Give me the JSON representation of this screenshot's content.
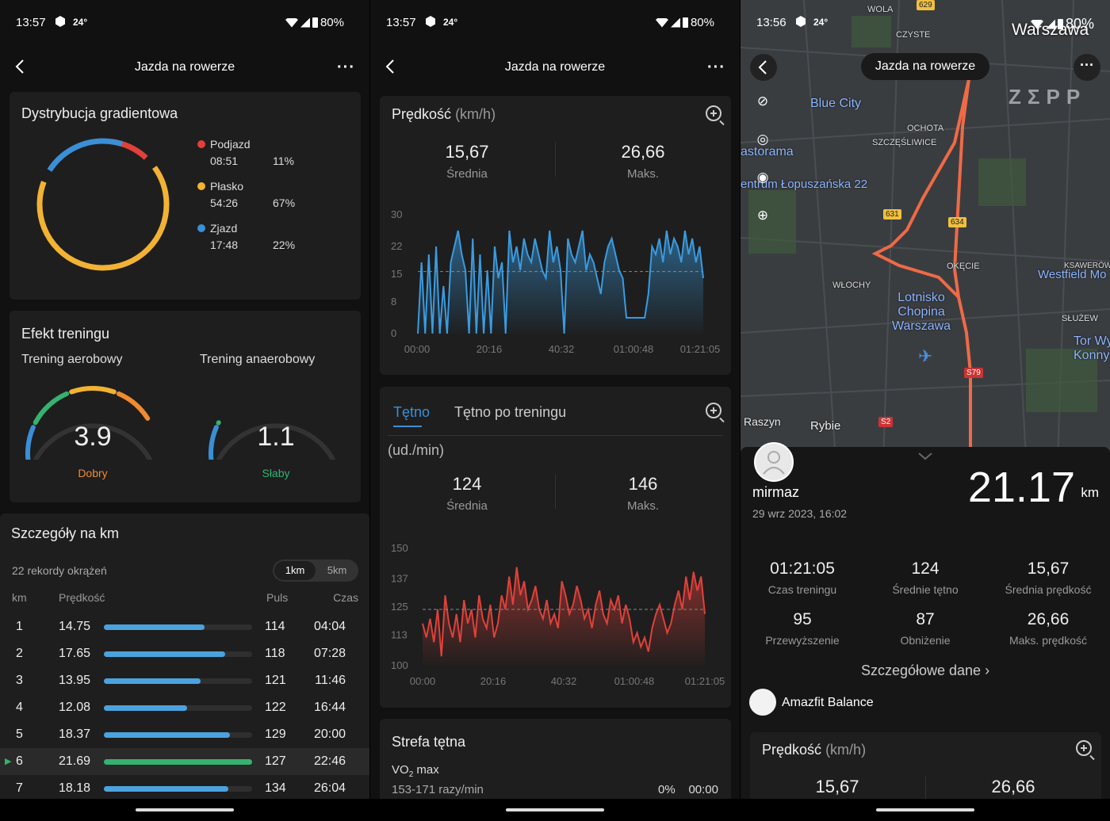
{
  "status_left": {
    "time": "13:57",
    "temp": "24°",
    "battery": "80%"
  },
  "status_right": {
    "time": "13:56",
    "temp": "24°",
    "battery": "80%"
  },
  "header": {
    "title": "Jazda na rowerze",
    "more": "···"
  },
  "gradient": {
    "title": "Dystrybucja gradientowa",
    "items": [
      {
        "label": "Podjazd",
        "time": "08:51",
        "pct": "11%",
        "color": "#e0413a",
        "frac": 0.11
      },
      {
        "label": "Płasko",
        "time": "54:26",
        "pct": "67%",
        "color": "#f2b233",
        "frac": 0.67
      },
      {
        "label": "Zjazd",
        "time": "17:48",
        "pct": "22%",
        "color": "#3a8fd6",
        "frac": 0.22
      }
    ]
  },
  "training": {
    "title": "Efekt treningu",
    "aerobic": {
      "label": "Trening aerobowy",
      "value": "3.9",
      "rating": "Dobry",
      "rating_color": "#f28a2f",
      "level": 0.78
    },
    "anaerobic": {
      "label": "Trening anaerobowy",
      "value": "1.1",
      "rating": "Słaby",
      "rating_color": "#35b26f",
      "level": 0.22
    }
  },
  "km": {
    "title": "Szczegóły na km",
    "records": "22 rekordy okrążeń",
    "seg": [
      "1km",
      "5km"
    ],
    "headers": {
      "km": "km",
      "speed": "Prędkość",
      "pulse": "Puls",
      "time": "Czas"
    },
    "rows": [
      {
        "km": "1",
        "speed": "14.75",
        "pulse": "114",
        "time": "04:04",
        "frac": 0.68
      },
      {
        "km": "2",
        "speed": "17.65",
        "pulse": "118",
        "time": "07:28",
        "frac": 0.82
      },
      {
        "km": "3",
        "speed": "13.95",
        "pulse": "121",
        "time": "11:46",
        "frac": 0.65
      },
      {
        "km": "4",
        "speed": "12.08",
        "pulse": "122",
        "time": "16:44",
        "frac": 0.56
      },
      {
        "km": "5",
        "speed": "18.37",
        "pulse": "129",
        "time": "20:00",
        "frac": 0.85
      },
      {
        "km": "6",
        "speed": "21.69",
        "pulse": "127",
        "time": "22:46",
        "frac": 1.0,
        "highlight": true
      },
      {
        "km": "7",
        "speed": "18.18",
        "pulse": "134",
        "time": "26:04",
        "frac": 0.84
      }
    ]
  },
  "speed_card": {
    "title": "Prędkość",
    "unit": "(km/h)",
    "avg": "15,67",
    "avg_label": "Średnia",
    "max": "26,66",
    "max_label": "Maks."
  },
  "hr_card": {
    "tab1": "Tętno",
    "tab2": "Tętno po treningu",
    "unit": "(ud./min)",
    "avg": "124",
    "avg_label": "Średnia",
    "max": "146",
    "max_label": "Maks."
  },
  "zone": {
    "title": "Strefa tętna",
    "vo2": "VO",
    "vo2_sub": "2",
    "vo2_rest": " max",
    "range": "153-171 razy/min",
    "pct": "0%",
    "time": "00:00"
  },
  "chart_data": [
    {
      "type": "area",
      "title": "Prędkość (km/h)",
      "x_ticks": [
        "00:00",
        "20:16",
        "40:32",
        "01:00:48",
        "01:21:05"
      ],
      "y_ticks": [
        30,
        22,
        15,
        8,
        0
      ],
      "ylim": [
        0,
        30
      ],
      "avg_line": 15.67,
      "values": [
        0,
        18,
        0,
        20,
        0,
        22,
        0,
        12,
        0,
        18,
        22,
        26,
        20,
        16,
        0,
        24,
        0,
        20,
        0,
        16,
        0,
        22,
        14,
        18,
        0,
        26,
        18,
        22,
        16,
        24,
        20,
        18,
        24,
        20,
        16,
        14,
        26,
        18,
        22,
        16,
        0,
        24,
        20,
        18,
        22,
        26,
        16,
        20,
        18,
        14,
        10,
        18,
        22,
        24,
        20,
        16,
        14,
        4,
        4,
        4,
        4,
        4,
        4,
        10,
        22,
        20,
        24,
        18,
        26,
        20,
        24,
        22,
        18,
        26,
        20,
        24,
        18,
        22,
        14
      ]
    },
    {
      "type": "area",
      "title": "Tętno (ud./min)",
      "x_ticks": [
        "00:00",
        "20:16",
        "40:32",
        "01:00:48",
        "01:21:05"
      ],
      "y_ticks": [
        150,
        137,
        125,
        113,
        100
      ],
      "ylim": [
        100,
        150
      ],
      "avg_line": 124,
      "values": [
        118,
        112,
        120,
        110,
        124,
        104,
        130,
        118,
        112,
        122,
        110,
        128,
        118,
        124,
        112,
        130,
        120,
        116,
        126,
        112,
        118,
        130,
        124,
        138,
        126,
        142,
        130,
        136,
        124,
        128,
        134,
        124,
        120,
        128,
        118,
        122,
        116,
        136,
        130,
        122,
        126,
        134,
        128,
        120,
        124,
        116,
        126,
        132,
        122,
        118,
        128,
        124,
        130,
        118,
        126,
        120,
        110,
        114,
        108,
        112,
        106,
        116,
        122,
        126,
        120,
        114,
        118,
        126,
        132,
        124,
        138,
        128,
        140,
        132,
        138,
        122
      ]
    }
  ],
  "map": {
    "city": "Warszawa",
    "brand": "ZΣPP",
    "places": [
      "WOLA",
      "CZYSTE",
      "Blue City",
      "OCHOTA",
      "SZCZĘŚLIWICE",
      "astorama",
      "entrum Łopuszańska 22",
      "WŁOCHY",
      "OKĘCIE",
      "Lotnisko Chopina Warszawa",
      "Westfield Mo",
      "KSAWERÓW",
      "SŁUŻEW",
      "Tor Wy Konny",
      "Raszyn",
      "Rybie"
    ],
    "roads": [
      "629",
      "631",
      "634",
      "S79",
      "S2"
    ]
  },
  "summary": {
    "user": "mirmaz",
    "date": "29 wrz 2023, 16:02",
    "distance": "21.17",
    "dist_unit": "km",
    "stats": [
      {
        "v": "01:21:05",
        "l": "Czas treningu"
      },
      {
        "v": "124",
        "l": "Średnie tętno"
      },
      {
        "v": "15,67",
        "l": "Średnia prędkość"
      },
      {
        "v": "95",
        "l": "Przewyższenie"
      },
      {
        "v": "87",
        "l": "Obniżenie"
      },
      {
        "v": "26,66",
        "l": "Maks. prędkość"
      }
    ],
    "details": "Szczegółowe dane",
    "device": "Amazfit Balance"
  },
  "speed_card3": {
    "title": "Prędkość",
    "unit": "(km/h)",
    "avg": "15,67",
    "max": "26,66"
  }
}
